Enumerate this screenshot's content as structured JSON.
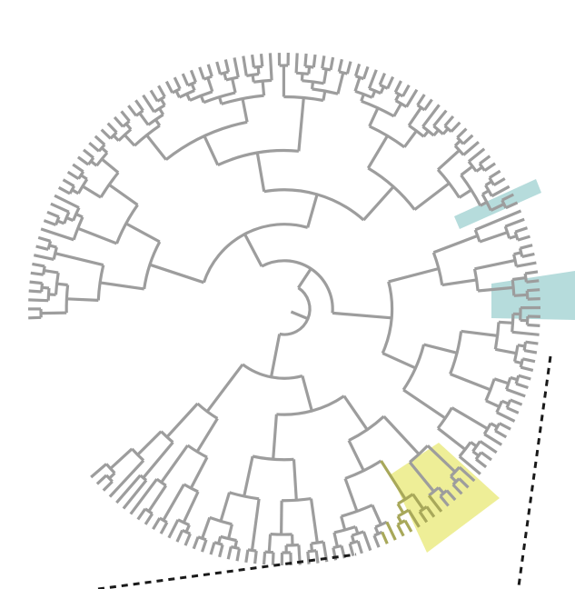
{
  "figure": {
    "type": "circular-dendrogram",
    "tip_count": 160,
    "colors": {
      "background": "#ffffff",
      "branch": "#9d9d9d",
      "highlight_teal": "#a9d6d6",
      "highlight_yellow": "#ecec8c",
      "yellow_subtree_branch": "#a8a85a",
      "dashed_guide": "#1a1a1a"
    },
    "highlights": [
      {
        "name": "teal-clade-upper",
        "color": "#a9d6d6"
      },
      {
        "name": "teal-clade-middle",
        "color": "#a9d6d6"
      },
      {
        "name": "yellow-clade-lower",
        "color": "#ecec8c"
      }
    ],
    "guides": {
      "style": "dashed",
      "count": 2
    }
  }
}
